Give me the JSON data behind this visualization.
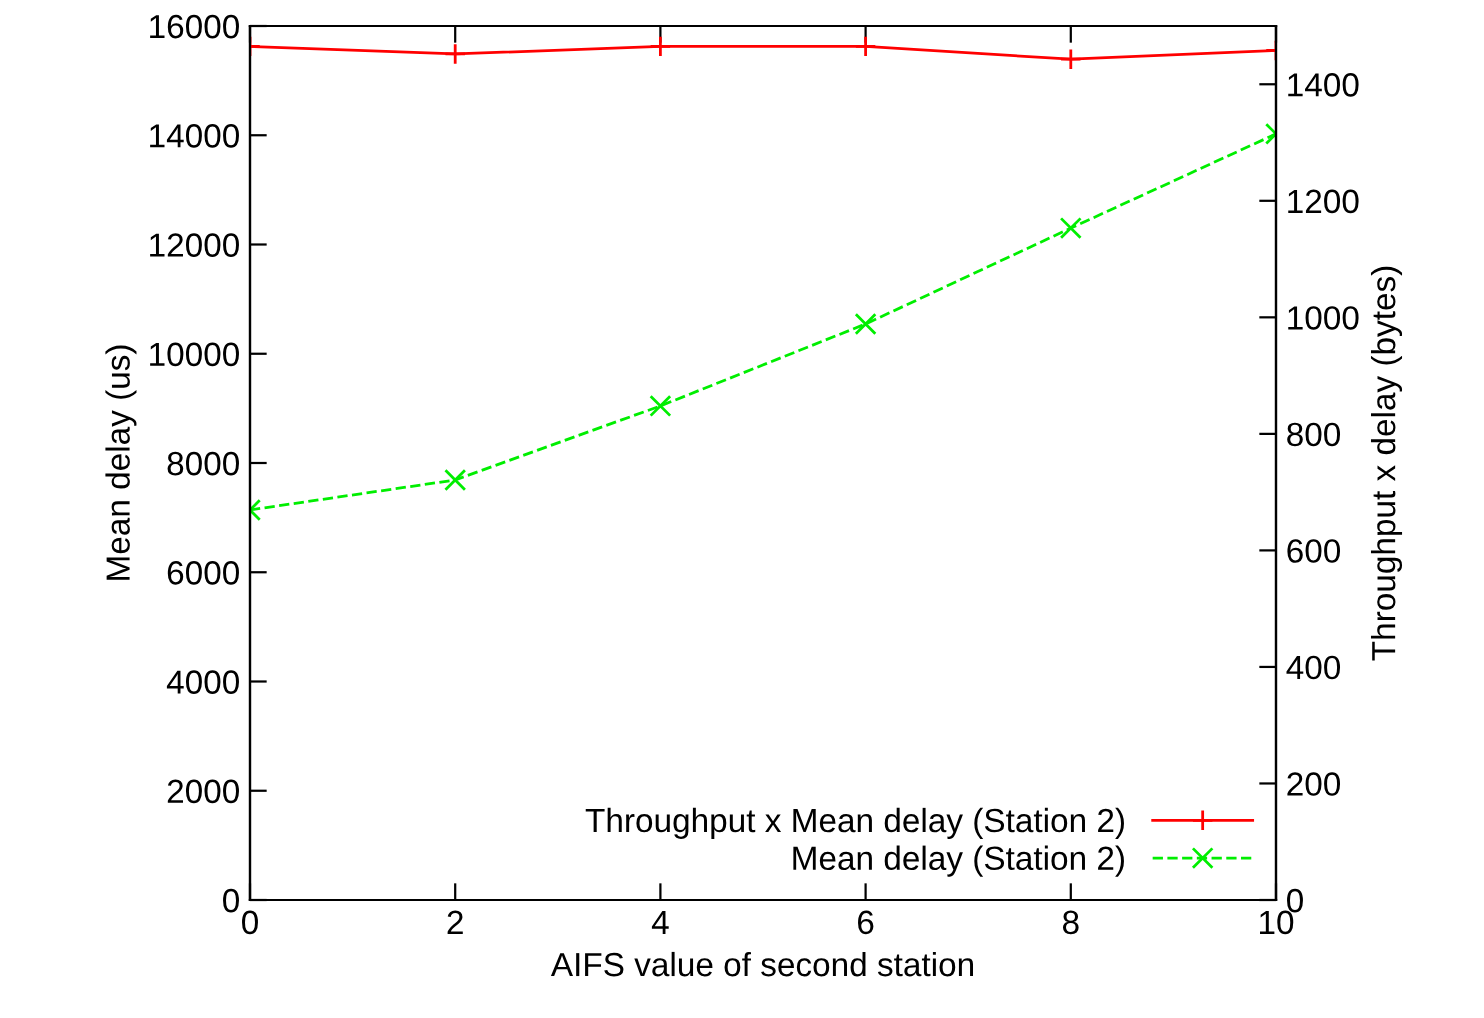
{
  "chart_data": {
    "type": "line",
    "xlabel": "AIFS value of second station",
    "ylabel": "Mean delay (us)",
    "y2label": "Throughput x delay (bytes)",
    "x": [
      0,
      2,
      4,
      6,
      8,
      10
    ],
    "xlim": [
      0,
      10
    ],
    "xticks": [
      0,
      2,
      4,
      6,
      8,
      10
    ],
    "ylim": [
      0,
      16000
    ],
    "yticks": [
      0,
      2000,
      4000,
      6000,
      8000,
      10000,
      12000,
      14000,
      16000
    ],
    "y2lim": [
      0,
      1500
    ],
    "y2ticks": [
      0,
      200,
      400,
      600,
      800,
      1000,
      1200,
      1400
    ],
    "grid": false,
    "legend": "bottom right",
    "series": [
      {
        "name": "Throughput x Mean delay (Station 2)",
        "color": "#ff0000",
        "axis": "y2",
        "marker": "cross",
        "line_style": "solid",
        "values": [
          1465,
          1452,
          1465,
          1465,
          1443,
          1458
        ]
      },
      {
        "name": "Mean delay (Station 2)",
        "color": "#00ee00",
        "marker": "x",
        "line_style": "dashed",
        "values": [
          7140,
          7690,
          9045,
          10545,
          12300,
          14025
        ]
      }
    ]
  }
}
